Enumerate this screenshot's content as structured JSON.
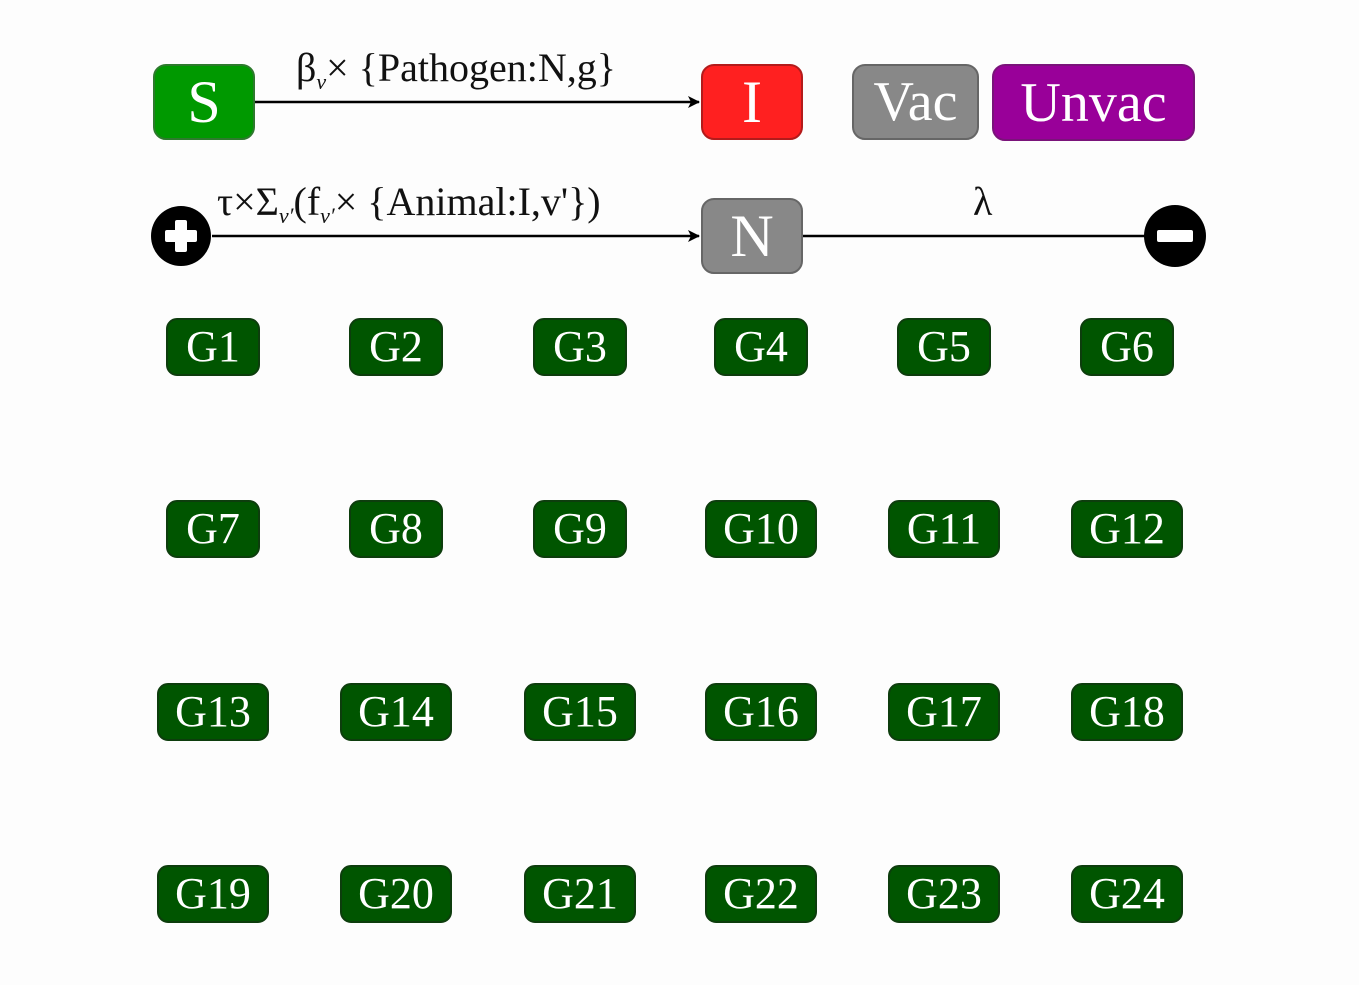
{
  "compartments": {
    "susceptible": "S",
    "infected": "I",
    "animal": "N",
    "vaccinated": "Vac",
    "unvaccinated": "Unvac"
  },
  "transitions": {
    "infection": {
      "beta": "β",
      "beta_sub": "v",
      "rest": "× {Pathogen:N,g}"
    },
    "birth": {
      "tau": "τ×Σ",
      "sum_sub": "v′",
      "open": "(f",
      "f_sub": "v′",
      "rest": "× {Animal:I,v'})"
    },
    "death": {
      "symbol": "λ"
    }
  },
  "groups": [
    "G1",
    "G2",
    "G3",
    "G4",
    "G5",
    "G6",
    "G7",
    "G8",
    "G9",
    "G10",
    "G11",
    "G12",
    "G13",
    "G14",
    "G15",
    "G16",
    "G17",
    "G18",
    "G19",
    "G20",
    "G21",
    "G22",
    "G23",
    "G24"
  ],
  "colors": {
    "susceptible": "#009900",
    "infected": "#ff2020",
    "animal": "#888888",
    "vaccinated": "#888888",
    "unvaccinated": "#990099",
    "group": "#005500"
  }
}
